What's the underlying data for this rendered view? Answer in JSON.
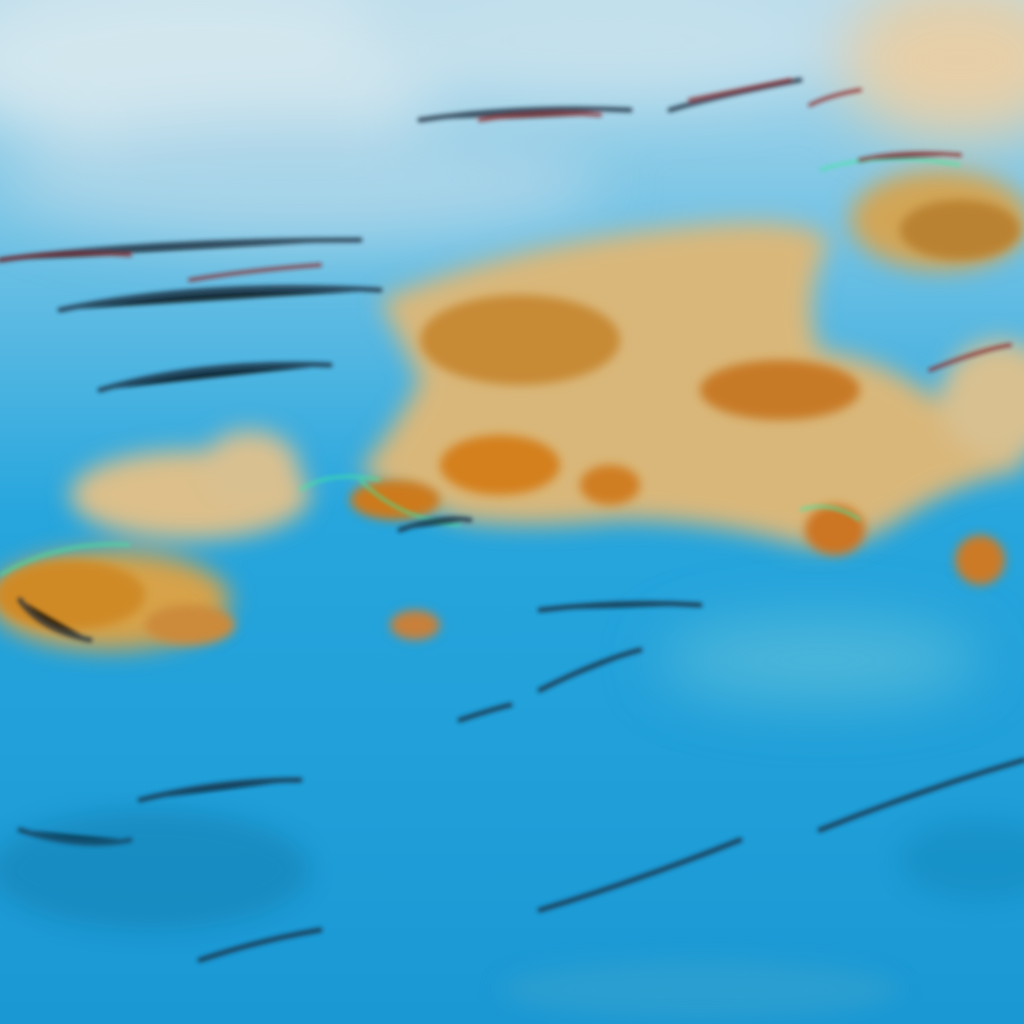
{
  "image": {
    "kind": "false-color satellite cloud imagery",
    "colors": {
      "ocean": "#1e9fd8",
      "ocean_deep": "#1690cc",
      "thin_cloud": "#a9d6ea",
      "high_haze": "#c9e3ee",
      "cloud_tan": "#d9b77a",
      "cloud_orange": "#d08a2a",
      "cloud_core": "#c0701a",
      "cloud_edge_green": "#3fe8a0",
      "shadow_dark": "#1b2a3a",
      "shadow_red": "#8a2020"
    }
  }
}
